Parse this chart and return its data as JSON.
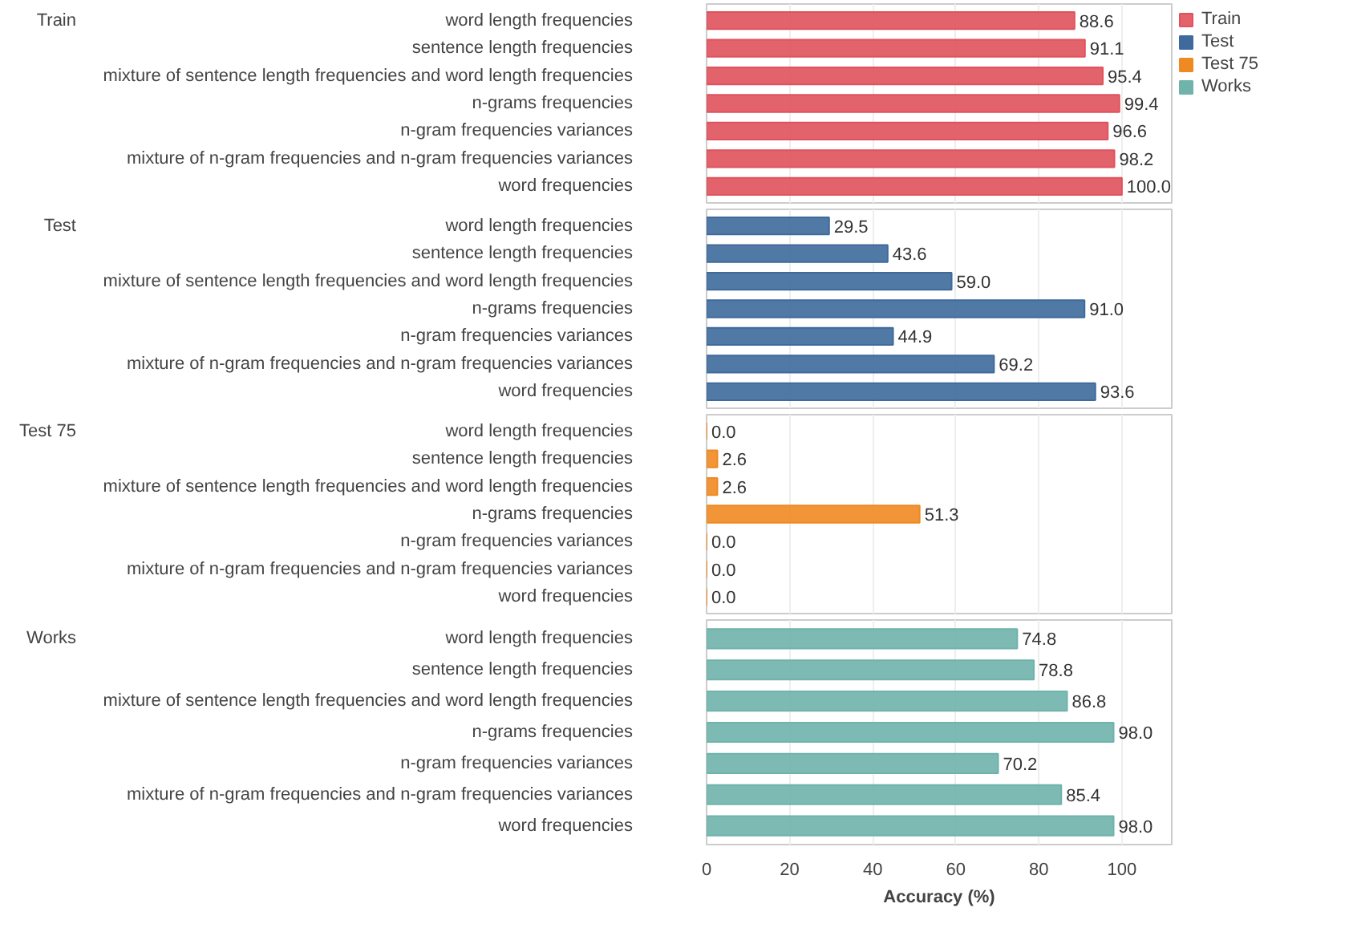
{
  "chart_data": [
    {
      "type": "bar",
      "orientation": "horizontal",
      "categories": [
        "word length frequencies",
        "sentence length frequencies",
        "mixture of sentence length frequencies and word length frequencies",
        "n-grams frequencies",
        "n-gram frequencies variances",
        "mixture of n-gram frequencies and n-gram frequencies variances",
        "word frequencies"
      ],
      "series": [
        {
          "name": "Train",
          "color": "#e0525c",
          "values": [
            88.6,
            91.1,
            95.4,
            99.4,
            96.6,
            98.2,
            100.0
          ],
          "value_labels": [
            "88.6",
            "91.1",
            "95.4",
            "99.4",
            "96.6",
            "98.2",
            "100.0"
          ]
        }
      ],
      "xlim": [
        0,
        112
      ],
      "xticks": [
        0,
        20,
        40,
        60,
        80,
        100
      ],
      "grid": "x",
      "data_labels": true,
      "tick_labels": "y",
      "legend": "right"
    },
    {
      "type": "bar",
      "orientation": "horizontal",
      "categories": [
        "word length frequencies",
        "sentence length frequencies",
        "mixture of sentence length frequencies and word length frequencies",
        "n-grams frequencies",
        "n-gram frequencies variances",
        "mixture of n-gram frequencies and n-gram frequencies variances",
        "word frequencies"
      ],
      "series": [
        {
          "name": "Test",
          "color": "#3e6a9c",
          "values": [
            29.5,
            43.6,
            59.0,
            91.0,
            44.9,
            69.2,
            93.6
          ],
          "value_labels": [
            "29.5",
            "43.6",
            "59.0",
            "91.0",
            "44.9",
            "69.2",
            "93.6"
          ]
        }
      ],
      "xlim": [
        0,
        112
      ],
      "xticks": [
        0,
        20,
        40,
        60,
        80,
        100
      ],
      "grid": "x",
      "data_labels": true,
      "tick_labels": "y"
    },
    {
      "type": "bar",
      "orientation": "horizontal",
      "categories": [
        "word length frequencies",
        "sentence length frequencies",
        "mixture of sentence length frequencies and word length frequencies",
        "n-grams frequencies",
        "n-gram frequencies variances",
        "mixture of n-gram frequencies and n-gram frequencies variances",
        "word frequencies"
      ],
      "series": [
        {
          "name": "Test 75",
          "color": "#ef8a22",
          "values": [
            0.0,
            2.6,
            2.6,
            51.3,
            0.0,
            0.0,
            0.0
          ],
          "value_labels": [
            "0.0",
            "2.6",
            "2.6",
            "51.3",
            "0.0",
            "0.0",
            "0.0"
          ]
        }
      ],
      "xlim": [
        0,
        112
      ],
      "xticks": [
        0,
        20,
        40,
        60,
        80,
        100
      ],
      "grid": "x",
      "data_labels": true,
      "tick_labels": "y"
    },
    {
      "type": "bar",
      "orientation": "horizontal",
      "categories": [
        "word length frequencies",
        "sentence length frequencies",
        "mixture of sentence length frequencies and word length frequencies",
        "n-grams frequencies",
        "n-gram frequencies variances",
        "mixture of n-gram frequencies and n-gram frequencies variances",
        "word frequencies"
      ],
      "series": [
        {
          "name": "Works",
          "color": "#6fb3ab",
          "values": [
            74.8,
            78.8,
            86.8,
            98.0,
            70.2,
            85.4,
            98.0
          ],
          "value_labels": [
            "74.8",
            "78.8",
            "86.8",
            "98.0",
            "70.2",
            "85.4",
            "98.0"
          ]
        }
      ],
      "xlim": [
        0,
        112
      ],
      "xticks": [
        0,
        20,
        40,
        60,
        80,
        100
      ],
      "grid": "x",
      "data_labels": true,
      "xlabel": "Accuracy (%)"
    }
  ]
}
